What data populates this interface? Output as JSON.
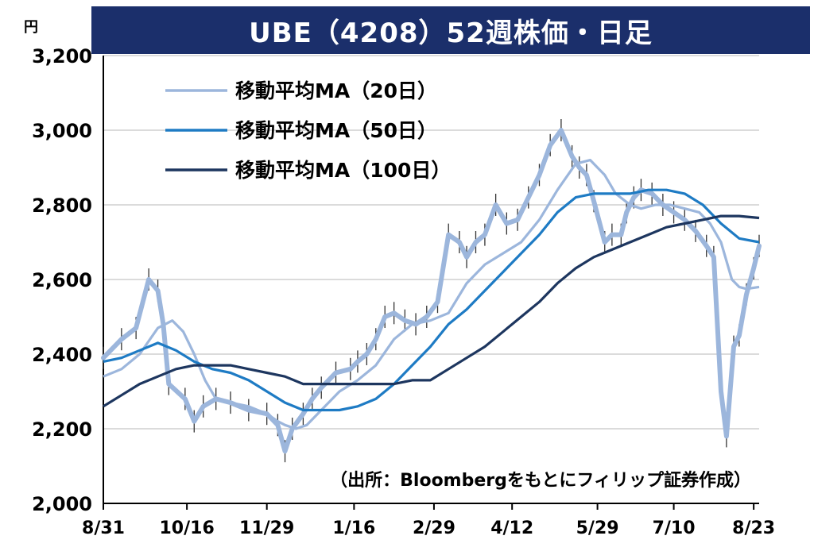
{
  "chart_data": {
    "type": "line",
    "title": "UBE（4208）52週株価・日足",
    "unit": "円",
    "ylim": [
      2000,
      3200
    ],
    "yticks": [
      "2,000",
      "2,200",
      "2,400",
      "2,600",
      "2,800",
      "3,000",
      "3,200"
    ],
    "ytick_values": [
      2000,
      2200,
      2400,
      2600,
      2800,
      3000,
      3200
    ],
    "x_tick_labels": [
      "8/31",
      "10/16",
      "11/29",
      "1/16",
      "2/29",
      "4/12",
      "5/29",
      "7/10",
      "8/23"
    ],
    "x_tick_days": [
      0,
      46,
      90,
      138,
      182,
      225,
      272,
      314,
      358
    ],
    "source": "（出所：Bloombergをもとにフィリップ証券作成）",
    "grid": true,
    "legend_position": "top-left",
    "colors": {
      "ma20": "#9cb6dc",
      "ma50": "#1e7bc4",
      "ma100": "#1d365f",
      "price": "#9cb6dc",
      "wick": "#333333",
      "title_bg": "#1b2f6b"
    },
    "price": {
      "x": [
        0,
        10,
        18,
        25,
        30,
        33,
        36,
        45,
        50,
        55,
        62,
        70,
        80,
        90,
        96,
        100,
        104,
        110,
        115,
        120,
        128,
        136,
        140,
        145,
        150,
        155,
        160,
        166,
        172,
        178,
        184,
        190,
        196,
        200,
        205,
        210,
        216,
        222,
        228,
        234,
        240,
        246,
        252,
        258,
        262,
        266,
        270,
        276,
        280,
        285,
        288,
        292,
        296,
        302,
        308,
        314,
        320,
        326,
        332,
        336,
        340,
        343,
        347,
        350,
        354,
        358,
        361
      ],
      "y": [
        2390,
        2440,
        2470,
        2600,
        2570,
        2480,
        2320,
        2280,
        2220,
        2260,
        2280,
        2270,
        2250,
        2240,
        2210,
        2140,
        2200,
        2240,
        2280,
        2310,
        2350,
        2360,
        2380,
        2400,
        2440,
        2500,
        2510,
        2490,
        2480,
        2500,
        2540,
        2720,
        2700,
        2660,
        2700,
        2720,
        2800,
        2750,
        2760,
        2820,
        2880,
        2960,
        3000,
        2930,
        2900,
        2880,
        2810,
        2700,
        2720,
        2720,
        2780,
        2820,
        2840,
        2830,
        2800,
        2780,
        2760,
        2730,
        2690,
        2660,
        2300,
        2180,
        2420,
        2450,
        2560,
        2630,
        2690
      ]
    },
    "series": [
      {
        "name": "移動平均MA（20日）",
        "x": [
          0,
          10,
          20,
          30,
          38,
          44,
          50,
          56,
          62,
          70,
          80,
          90,
          96,
          100,
          106,
          112,
          120,
          130,
          140,
          150,
          160,
          170,
          180,
          190,
          200,
          210,
          220,
          230,
          240,
          250,
          260,
          268,
          276,
          282,
          290,
          296,
          304,
          312,
          320,
          328,
          334,
          340,
          346,
          350,
          354,
          361
        ],
        "y": [
          2340,
          2360,
          2400,
          2470,
          2490,
          2460,
          2400,
          2330,
          2280,
          2270,
          2260,
          2240,
          2220,
          2210,
          2200,
          2210,
          2250,
          2300,
          2330,
          2370,
          2440,
          2480,
          2490,
          2510,
          2590,
          2640,
          2670,
          2700,
          2760,
          2840,
          2910,
          2920,
          2880,
          2830,
          2800,
          2790,
          2800,
          2800,
          2790,
          2780,
          2750,
          2700,
          2600,
          2580,
          2575,
          2580
        ]
      },
      {
        "name": "移動平均MA（50日）",
        "x": [
          0,
          10,
          20,
          30,
          40,
          50,
          60,
          70,
          80,
          90,
          100,
          110,
          120,
          130,
          140,
          150,
          160,
          170,
          180,
          190,
          200,
          210,
          220,
          230,
          240,
          250,
          260,
          270,
          280,
          290,
          300,
          310,
          320,
          330,
          340,
          350,
          361
        ],
        "y": [
          2380,
          2390,
          2410,
          2430,
          2410,
          2380,
          2360,
          2350,
          2330,
          2300,
          2270,
          2250,
          2250,
          2250,
          2260,
          2280,
          2320,
          2370,
          2420,
          2480,
          2520,
          2570,
          2620,
          2670,
          2720,
          2780,
          2820,
          2830,
          2830,
          2830,
          2840,
          2840,
          2830,
          2800,
          2750,
          2710,
          2700
        ]
      },
      {
        "name": "移動平均MA（100日）",
        "x": [
          0,
          10,
          20,
          30,
          40,
          50,
          60,
          70,
          80,
          90,
          100,
          110,
          120,
          130,
          140,
          150,
          160,
          170,
          180,
          190,
          200,
          210,
          220,
          230,
          240,
          250,
          260,
          270,
          280,
          290,
          300,
          310,
          320,
          330,
          340,
          350,
          361
        ],
        "y": [
          2260,
          2290,
          2320,
          2340,
          2360,
          2370,
          2370,
          2370,
          2360,
          2350,
          2340,
          2320,
          2320,
          2320,
          2320,
          2320,
          2320,
          2330,
          2330,
          2360,
          2390,
          2420,
          2460,
          2500,
          2540,
          2590,
          2630,
          2660,
          2680,
          2700,
          2720,
          2740,
          2750,
          2760,
          2770,
          2770,
          2765
        ]
      }
    ]
  }
}
